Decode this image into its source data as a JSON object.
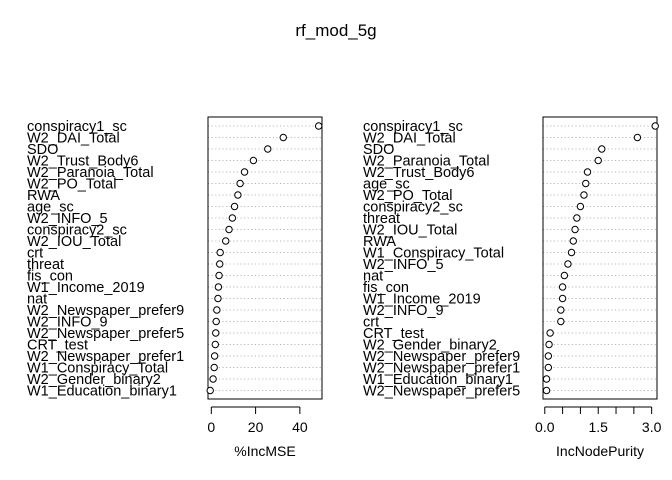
{
  "title": "rf_mod_5g",
  "chart_data": [
    {
      "type": "scatter",
      "xlabel": "%IncMSE",
      "xlim": [
        -1.5,
        50
      ],
      "xticks": [
        0,
        20,
        40
      ],
      "tick_labels": [
        "0",
        "20",
        "40"
      ],
      "labels": [
        "conspiracy1_sc",
        "W2_DAI_Total",
        "SDO",
        "W2_Trust_Body6",
        "W2_Paranoia_Total",
        "W2_PO_Total",
        "RWA",
        "age_sc",
        "W2_INFO_5",
        "conspiracy2_sc",
        "W2_IOU_Total",
        "crt",
        "threat",
        "fis_con",
        "W1_Income_2019",
        "nat",
        "W2_Newspaper_prefer9",
        "W2_INFO_9",
        "W2_Newspaper_prefer5",
        "CRT_test",
        "W2_Newspaper_prefer1",
        "W1_Conspiracy_Total",
        "W2_Gender_binary2",
        "W1_Education_binary1"
      ],
      "values": [
        48.5,
        32.5,
        25.5,
        19.0,
        15.0,
        13.0,
        12.0,
        10.5,
        9.5,
        8.0,
        6.5,
        4.0,
        3.8,
        3.5,
        3.2,
        3.0,
        2.5,
        2.2,
        2.0,
        1.8,
        1.5,
        1.3,
        0.8,
        -0.5
      ]
    },
    {
      "type": "scatter",
      "xlabel": "IncNodePurity",
      "xlim": [
        -0.05,
        3.15
      ],
      "xticks": [
        0,
        0.5,
        1.0,
        1.5,
        2.0,
        2.5,
        3.0
      ],
      "tick_labels": [
        "0.0",
        "",
        "",
        "1.5",
        "",
        "",
        "3.0"
      ],
      "labels": [
        "conspiracy1_sc",
        "W2_DAI_Total",
        "SDO",
        "W2_Paranoia_Total",
        "W2_Trust_Body6",
        "age_sc",
        "W2_PO_Total",
        "conspiracy2_sc",
        "threat",
        "W2_IOU_Total",
        "RWA",
        "W1_Conspiracy_Total",
        "W2_INFO_5",
        "nat",
        "fis_con",
        "W1_Income_2019",
        "W2_INFO_9",
        "crt",
        "CRT_test",
        "W2_Gender_binary2",
        "W2_Newspaper_prefer9",
        "W2_Newspaper_prefer1",
        "W1_Education_binary1",
        "W2_Newspaper_prefer5"
      ],
      "values": [
        3.1,
        2.6,
        1.6,
        1.5,
        1.2,
        1.15,
        1.1,
        1.0,
        0.9,
        0.85,
        0.8,
        0.75,
        0.65,
        0.55,
        0.5,
        0.5,
        0.45,
        0.45,
        0.15,
        0.12,
        0.1,
        0.1,
        0.05,
        0.05
      ]
    }
  ]
}
